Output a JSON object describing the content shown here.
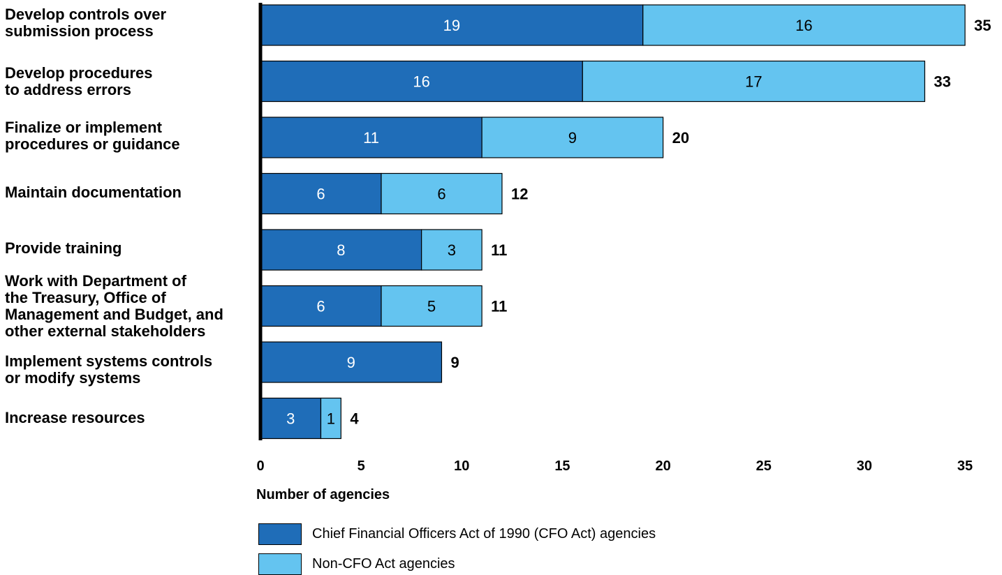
{
  "chart_data": {
    "type": "bar",
    "orientation": "horizontal",
    "stacked": true,
    "categories": [
      "Develop controls over\nsubmission process",
      "Develop procedures\nto address errors",
      "Finalize or implement\nprocedures or guidance",
      "Maintain documentation",
      "Provide training",
      "Work with Department of\nthe Treasury, Office of\nManagement and Budget, and\nother external stakeholders",
      "Implement systems controls\nor modify systems",
      "Increase resources"
    ],
    "series": [
      {
        "name": "Chief Financial Officers Act of 1990 (CFO Act) agencies",
        "values": [
          19,
          16,
          11,
          6,
          8,
          6,
          9,
          3
        ],
        "color": "#1f6db8"
      },
      {
        "name": "Non-CFO Act agencies",
        "values": [
          16,
          17,
          9,
          6,
          3,
          5,
          0,
          1
        ],
        "color": "#64c4f0"
      }
    ],
    "totals": [
      35,
      33,
      20,
      12,
      11,
      11,
      9,
      4
    ],
    "xlabel": "Number of agencies",
    "xlim": [
      0,
      35
    ],
    "xticks": [
      0,
      5,
      10,
      15,
      20,
      25,
      30,
      35
    ],
    "grid": false,
    "legend_position": "bottom-left"
  }
}
